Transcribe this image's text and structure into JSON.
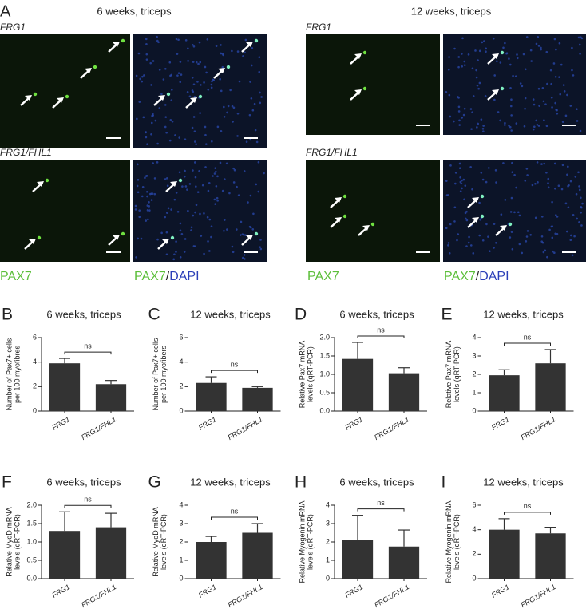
{
  "panel_a": {
    "label": "A",
    "groups": [
      {
        "title": "6 weeks, triceps",
        "rows": [
          "FRG1",
          "FRG1/FHL1"
        ],
        "stain_left": "PAX7",
        "stain_right": [
          "PAX7",
          "/",
          "DAPI"
        ]
      },
      {
        "title": "12 weeks, triceps",
        "rows": [
          "FRG1",
          "FRG1/FHL1"
        ],
        "stain_left": "PAX7",
        "stain_right": [
          "PAX7",
          "/",
          "DAPI"
        ]
      }
    ]
  },
  "chart_data": [
    {
      "type": "bar",
      "panel": "B",
      "title": "6 weeks, triceps",
      "ylabel": [
        "Number of Pax7+ cells",
        "per 100 myofibres"
      ],
      "categories": [
        "FRG1",
        "FRG1/FHL1"
      ],
      "values": [
        3.9,
        2.2
      ],
      "errors": [
        0.4,
        0.3
      ],
      "annotation": "ns",
      "ylim": [
        0,
        6
      ],
      "yticks": [
        0,
        2,
        4,
        6
      ],
      "color": "#333333"
    },
    {
      "type": "bar",
      "panel": "C",
      "title": "12 weeks, triceps",
      "ylabel": [
        "Number of Pax7+ cells",
        "per 100 myofibers"
      ],
      "categories": [
        "FRG1",
        "FRG1/FHL1"
      ],
      "values": [
        2.3,
        1.9
      ],
      "errors": [
        0.5,
        0.1
      ],
      "annotation": "ns",
      "ylim": [
        0,
        6
      ],
      "yticks": [
        0,
        2,
        4,
        6
      ],
      "color": "#333333"
    },
    {
      "type": "bar",
      "panel": "D",
      "title": "6 weeks, triceps",
      "ylabel": [
        "Relative Pax7 mRNA",
        "levels (qRT-PCR)"
      ],
      "categories": [
        "FRG1",
        "FRG1/FHL1"
      ],
      "values": [
        1.42,
        1.03
      ],
      "errors": [
        0.45,
        0.15
      ],
      "annotation": "ns",
      "ylim": [
        0,
        2
      ],
      "yticks": [
        {
          "value": 0,
          "label": "0.0"
        },
        0.5,
        {
          "value": 1,
          "label": "1.0"
        },
        1.5,
        {
          "value": 2,
          "label": "2.0"
        }
      ],
      "color": "#333333"
    },
    {
      "type": "bar",
      "panel": "E",
      "title": "12 weeks, triceps",
      "ylabel": [
        "Relative Pax7 mRNA",
        "levels (qRT-PCR)"
      ],
      "categories": [
        "FRG1",
        "FRG1/FHL1"
      ],
      "values": [
        1.95,
        2.6
      ],
      "errors": [
        0.3,
        0.75
      ],
      "annotation": "ns",
      "ylim": [
        0,
        4
      ],
      "yticks": [
        0,
        1,
        2,
        3,
        4
      ],
      "color": "#333333"
    },
    {
      "type": "bar",
      "panel": "F",
      "title": "6 weeks, triceps",
      "ylabel": [
        "Relative MyoD mRNA",
        "levels (qRT-PCR)"
      ],
      "categories": [
        "FRG1",
        "FRG1/FHL1"
      ],
      "values": [
        1.3,
        1.4
      ],
      "errors": [
        0.52,
        0.38
      ],
      "annotation": "ns",
      "ylim": [
        0,
        2
      ],
      "yticks": [
        {
          "value": 0,
          "label": "0.0"
        },
        0.5,
        {
          "value": 1,
          "label": "1.0"
        },
        1.5,
        {
          "value": 2,
          "label": "2.0"
        }
      ],
      "color": "#333333"
    },
    {
      "type": "bar",
      "panel": "G",
      "title": "12 weeks, triceps",
      "ylabel": [
        "Relative MyoD mRNA",
        "levels (qRT-PCR)"
      ],
      "categories": [
        "FRG1",
        "FRG1/FHL1"
      ],
      "values": [
        2.0,
        2.5
      ],
      "errors": [
        0.3,
        0.5
      ],
      "annotation": "ns",
      "ylim": [
        0,
        4
      ],
      "yticks": [
        0,
        1,
        2,
        3,
        4
      ],
      "color": "#333333"
    },
    {
      "type": "bar",
      "panel": "H",
      "title": "6 weeks, triceps",
      "ylabel": [
        "Relative Myogenin mRNA",
        "levels (qRT-PCR)"
      ],
      "categories": [
        "FRG1",
        "FRG1/FHL1"
      ],
      "values": [
        2.1,
        1.75
      ],
      "errors": [
        1.35,
        0.9
      ],
      "annotation": "ns",
      "ylim": [
        0,
        4
      ],
      "yticks": [
        0,
        1,
        2,
        3,
        4
      ],
      "color": "#333333"
    },
    {
      "type": "bar",
      "panel": "I",
      "title": "12 weeks, triceps",
      "ylabel": [
        "Relative Myogenin mRNA",
        "levels (qRT-PCR)"
      ],
      "categories": [
        "FRG1",
        "FRG1/FHL1"
      ],
      "values": [
        4.0,
        3.7
      ],
      "errors": [
        0.9,
        0.5
      ],
      "annotation": "ns",
      "ylim": [
        0,
        6
      ],
      "yticks": [
        0,
        2,
        4,
        6
      ],
      "color": "#333333"
    }
  ]
}
